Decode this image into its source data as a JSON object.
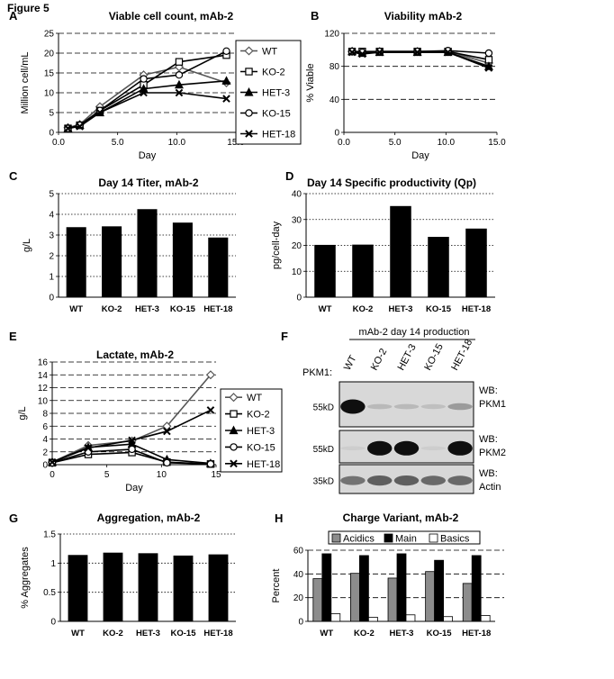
{
  "figure_title": "Figure 5",
  "panel_labels": [
    "A",
    "B",
    "C",
    "D",
    "E",
    "F",
    "G",
    "H"
  ],
  "chart_data": [
    {
      "id": "A",
      "type": "line",
      "title": "Viable cell count, mAb-2",
      "xlabel": "Day",
      "ylabel": "Million cell/mL",
      "xlim": [
        0,
        15
      ],
      "ylim": [
        0,
        25
      ],
      "xticks": [
        0,
        5,
        10,
        15
      ],
      "yticks": [
        0,
        5,
        10,
        15,
        20,
        25
      ],
      "xtick_labels": [
        "0.0",
        "5.0",
        "10.0",
        "15.0"
      ],
      "ytick_labels": [
        "0",
        "5",
        "10",
        "15",
        "20",
        "25"
      ],
      "grid": "horizontal-dashed",
      "legend": "right",
      "series": [
        {
          "name": "WT",
          "marker": "diamond",
          "x": [
            0.8,
            1.8,
            3.5,
            7.2,
            10.2,
            14.2
          ],
          "y": [
            1.2,
            2.0,
            6.5,
            14.5,
            16.5,
            12.5
          ]
        },
        {
          "name": "KO-2",
          "marker": "square",
          "x": [
            0.8,
            1.8,
            3.5,
            7.2,
            10.2,
            14.2
          ],
          "y": [
            1.0,
            1.8,
            5.5,
            12.0,
            17.8,
            19.5
          ]
        },
        {
          "name": "HET-3",
          "marker": "triangle",
          "x": [
            0.8,
            1.8,
            3.5,
            7.2,
            10.2,
            14.2
          ],
          "y": [
            1.0,
            1.8,
            5.0,
            11.0,
            12.0,
            13.0
          ]
        },
        {
          "name": "KO-15",
          "marker": "circle",
          "x": [
            0.8,
            1.8,
            3.5,
            7.2,
            10.2,
            14.2
          ],
          "y": [
            1.0,
            1.8,
            5.5,
            13.5,
            14.5,
            20.5
          ]
        },
        {
          "name": "HET-18",
          "marker": "x",
          "x": [
            0.8,
            1.8,
            3.5,
            7.2,
            10.2,
            14.2
          ],
          "y": [
            1.0,
            1.5,
            5.0,
            10.0,
            10.0,
            8.5
          ]
        }
      ]
    },
    {
      "id": "B",
      "type": "line",
      "title": "Viability mAb-2",
      "xlabel": "Day",
      "ylabel": "% Viable",
      "xlim": [
        0,
        15
      ],
      "ylim": [
        0,
        120
      ],
      "xticks": [
        0,
        5,
        10,
        15
      ],
      "yticks": [
        0,
        40,
        80,
        120
      ],
      "xtick_labels": [
        "0.0",
        "5.0",
        "10.0",
        "15.0"
      ],
      "ytick_labels": [
        "0",
        "40",
        "80",
        "120"
      ],
      "grid": "horizontal-dashed",
      "series": [
        {
          "name": "WT",
          "marker": "diamond",
          "x": [
            0.8,
            1.8,
            3.5,
            7.2,
            10.2,
            14.2
          ],
          "y": [
            98,
            97,
            98,
            98,
            98,
            84
          ]
        },
        {
          "name": "KO-2",
          "marker": "square",
          "x": [
            0.8,
            1.8,
            3.5,
            7.2,
            10.2,
            14.2
          ],
          "y": [
            98,
            98,
            98,
            98,
            98,
            88
          ]
        },
        {
          "name": "HET-3",
          "marker": "triangle",
          "x": [
            0.8,
            1.8,
            3.5,
            7.2,
            10.2,
            14.2
          ],
          "y": [
            98,
            96,
            97,
            97,
            97,
            80
          ]
        },
        {
          "name": "KO-15",
          "marker": "circle",
          "x": [
            0.8,
            1.8,
            3.5,
            7.2,
            10.2,
            14.2
          ],
          "y": [
            98,
            97,
            98,
            98,
            99,
            96
          ]
        },
        {
          "name": "HET-18",
          "marker": "x",
          "x": [
            0.8,
            1.8,
            3.5,
            7.2,
            10.2,
            14.2
          ],
          "y": [
            97,
            95,
            97,
            97,
            97,
            78
          ]
        }
      ]
    },
    {
      "id": "C",
      "type": "bar",
      "title": "Day 14 Titer, mAb-2",
      "ylabel": "g/L",
      "ylim": [
        0,
        5
      ],
      "yticks": [
        0,
        1,
        2,
        3,
        4,
        5
      ],
      "ytick_labels": [
        "0",
        "1",
        "2",
        "3",
        "4",
        "5"
      ],
      "grid": "horizontal-dotted",
      "categories": [
        "WT",
        "KO-2",
        "HET-3",
        "KO-15",
        "HET-18"
      ],
      "values": [
        3.38,
        3.42,
        4.25,
        3.6,
        2.88
      ]
    },
    {
      "id": "D",
      "type": "bar",
      "title": "Day 14 Specific productivity (Qp)",
      "ylabel": "pg/cell-day",
      "ylim": [
        0,
        40
      ],
      "yticks": [
        0,
        10,
        20,
        30,
        40
      ],
      "ytick_labels": [
        "0",
        "10",
        "20",
        "30",
        "40"
      ],
      "grid": "horizontal-dotted",
      "categories": [
        "WT",
        "KO-2",
        "HET-3",
        "KO-15",
        "HET-18"
      ],
      "values": [
        20.2,
        20.3,
        35.2,
        23.3,
        26.5
      ]
    },
    {
      "id": "E",
      "type": "line",
      "title": "Lactate, mAb-2",
      "xlabel": "Day",
      "ylabel": "g/L",
      "xlim": [
        0,
        15
      ],
      "ylim": [
        0,
        16
      ],
      "xticks": [
        0,
        5,
        10,
        15
      ],
      "yticks": [
        0,
        2,
        4,
        6,
        8,
        10,
        12,
        14,
        16
      ],
      "xtick_labels": [
        "0",
        "5",
        "10",
        "15"
      ],
      "ytick_labels": [
        "0",
        "2",
        "4",
        "6",
        "8",
        "10",
        "12",
        "14",
        "16"
      ],
      "grid": "horizontal-dashed",
      "legend": "right",
      "series": [
        {
          "name": "WT",
          "marker": "diamond",
          "x": [
            0,
            3.3,
            7.3,
            10.5,
            14.5
          ],
          "y": [
            0.4,
            3.0,
            3.7,
            6.0,
            14.0
          ]
        },
        {
          "name": "KO-2",
          "marker": "square",
          "x": [
            0,
            3.3,
            7.3,
            10.5,
            14.5
          ],
          "y": [
            0.3,
            1.6,
            1.9,
            0.4,
            0.1
          ]
        },
        {
          "name": "HET-3",
          "marker": "triangle",
          "x": [
            0,
            3.3,
            7.3,
            10.5,
            14.5
          ],
          "y": [
            0.4,
            2.7,
            3.2,
            0.8,
            0.2
          ]
        },
        {
          "name": "KO-15",
          "marker": "circle",
          "x": [
            0,
            3.3,
            7.3,
            10.5,
            14.5
          ],
          "y": [
            0.3,
            2.0,
            2.4,
            0.3,
            0.1
          ]
        },
        {
          "name": "HET-18",
          "marker": "x",
          "x": [
            0,
            3.3,
            7.3,
            10.5,
            14.5
          ],
          "y": [
            0.4,
            2.6,
            3.8,
            5.2,
            8.5
          ]
        }
      ]
    },
    {
      "id": "G",
      "type": "bar",
      "title": "Aggregation, mAb-2",
      "ylabel": "% Aggregates",
      "ylim": [
        0,
        1.5
      ],
      "yticks": [
        0,
        0.5,
        1,
        1.5
      ],
      "ytick_labels": [
        "0",
        "0.5",
        "1",
        "1.5"
      ],
      "grid": "horizontal-dotted",
      "categories": [
        "WT",
        "KO-2",
        "HET-3",
        "KO-15",
        "HET-18"
      ],
      "values": [
        1.14,
        1.18,
        1.17,
        1.13,
        1.15
      ]
    },
    {
      "id": "H",
      "type": "bar",
      "title": "Charge Variant, mAb-2",
      "ylabel": "Percent",
      "ylim": [
        0,
        60
      ],
      "yticks": [
        0,
        20,
        40,
        60
      ],
      "ytick_labels": [
        "0",
        "20",
        "40",
        "60"
      ],
      "grid": "horizontal-dashed",
      "legend": "top",
      "categories": [
        "WT",
        "KO-2",
        "HET-3",
        "KO-15",
        "HET-18"
      ],
      "series": [
        {
          "name": "Acidics",
          "color": "#8c8c8c",
          "values": [
            36,
            40.5,
            36.5,
            42,
            32
          ]
        },
        {
          "name": "Main",
          "color": "#000000",
          "values": [
            57,
            55.5,
            57,
            51.5,
            55.5
          ]
        },
        {
          "name": "Basics",
          "color": "#ffffff",
          "values": [
            6.5,
            3.5,
            5.5,
            4,
            5
          ]
        }
      ]
    }
  ],
  "western_blot": {
    "title": "mAb-2 day 14 production",
    "row_label": "PKM1:",
    "lanes": [
      "WT",
      "KO-2",
      "HET-3",
      "KO-15",
      "HET-18"
    ],
    "blots": [
      {
        "mw": "55kD",
        "wb_label": "WB:",
        "target": "PKM1",
        "intensity": [
          1.0,
          0.15,
          0.15,
          0.12,
          0.3
        ]
      },
      {
        "mw": "55kD",
        "wb_label": "WB:",
        "target": "PKM2",
        "intensity": [
          0.05,
          1.0,
          1.0,
          0.05,
          1.0
        ]
      },
      {
        "mw": "35kD",
        "wb_label": "WB:",
        "target": "Actin",
        "intensity": [
          0.5,
          0.6,
          0.6,
          0.55,
          0.55
        ]
      }
    ]
  }
}
